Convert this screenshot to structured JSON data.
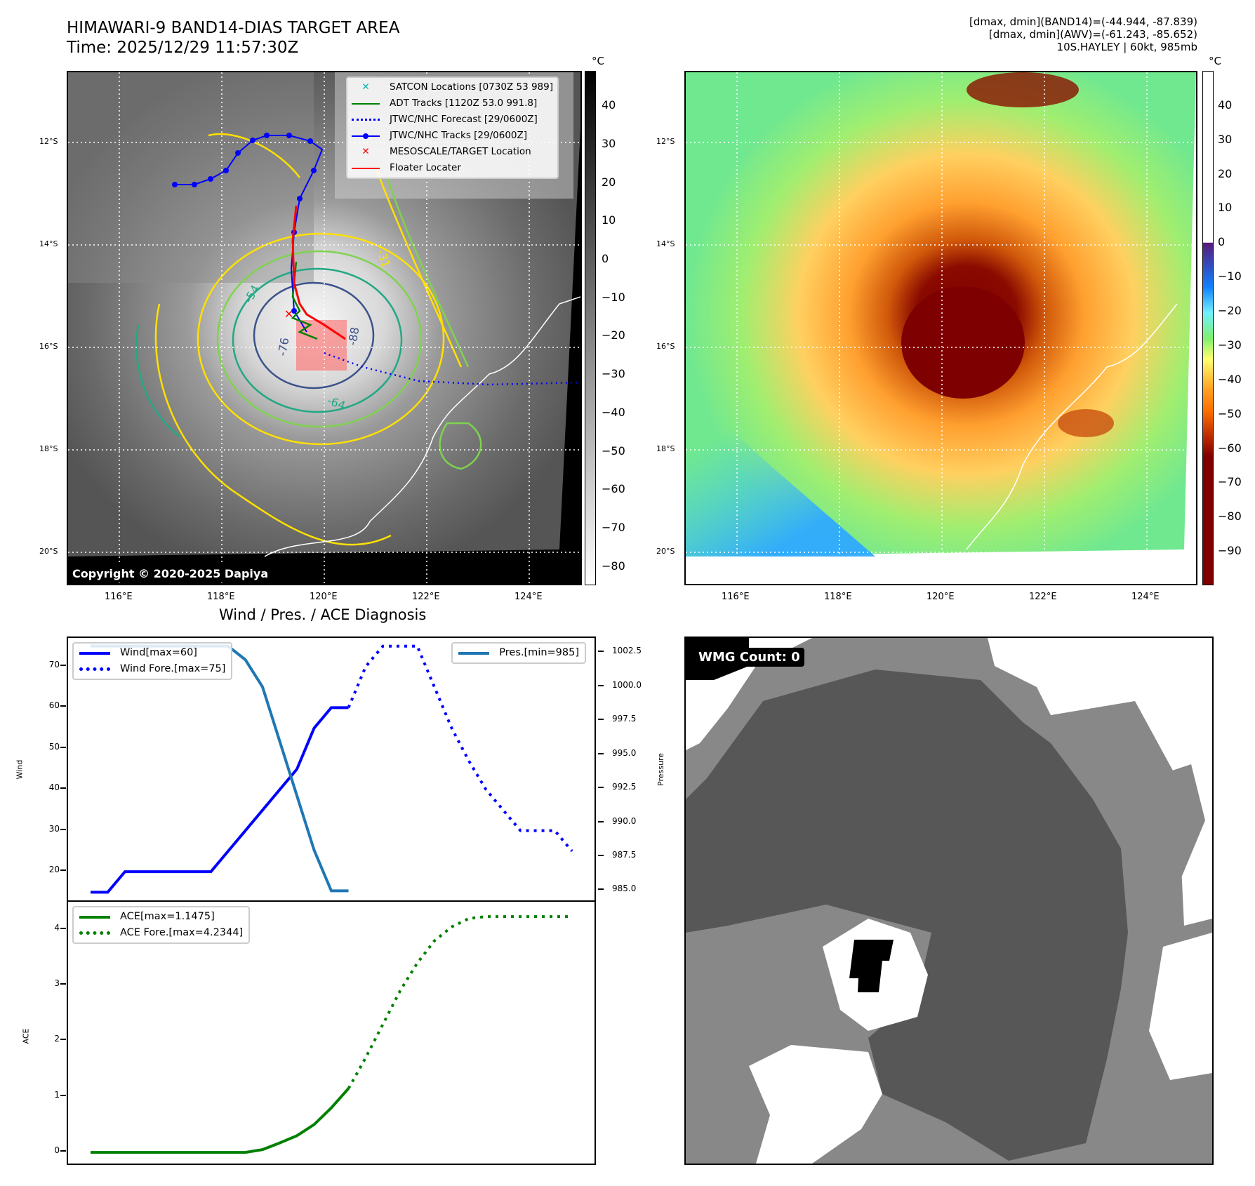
{
  "header": {
    "title_line1": "HIMAWARI-9 BAND14-DIAS TARGET AREA",
    "title_line2": "Time: 2025/12/29 11:57:30Z",
    "info_line1": "[dmax, dmin](BAND14)=(-44.944, -87.839)",
    "info_line2": "[dmax, dmin](AWV)=(-61.243, -85.652)",
    "info_line3": "10S.HAYLEY | 60kt, 985mb"
  },
  "colors": {
    "wind": "#0000ff",
    "pressure": "#1f77b4",
    "ace": "#008000",
    "floater": "#ff0000",
    "satcon": "#00b3b3",
    "contour_yellow": "#ffe000",
    "contour_green": "#7fd34e",
    "contour_teal": "#22a884",
    "contour_blue": "#3b528b"
  },
  "map_left": {
    "lat_ticks": [
      "12°S",
      "14°S",
      "16°S",
      "18°S",
      "20°S"
    ],
    "lon_ticks": [
      "116°E",
      "118°E",
      "120°E",
      "122°E",
      "124°E"
    ],
    "copyright": "Copyright © 2020-2025 Dapiya",
    "contour_labels": [
      "-31",
      "-54",
      "-76",
      "-64",
      "-88"
    ],
    "legend": [
      {
        "label": "SATCON Locations [0730Z 53 989]",
        "icon": "cyan-x-icon"
      },
      {
        "label": "ADT Tracks [1120Z 53.0 991.8]",
        "icon": "green-line-icon"
      },
      {
        "label": "JTWC/NHC Forecast [29/0600Z]",
        "icon": "blue-dotted-line-icon"
      },
      {
        "label": "JTWC/NHC Tracks [29/0600Z]",
        "icon": "blue-line-dot-icon"
      },
      {
        "label": "MESOSCALE/TARGET Location",
        "icon": "red-x-icon"
      },
      {
        "label": "Floater Locater",
        "icon": "red-line-icon"
      }
    ],
    "colorbar": {
      "unit": "°C",
      "ticks": [
        "40",
        "30",
        "20",
        "10",
        "0",
        "−10",
        "−20",
        "−30",
        "−40",
        "−50",
        "−60",
        "−70",
        "−80"
      ]
    }
  },
  "map_right": {
    "lat_ticks": [
      "12°S",
      "14°S",
      "16°S",
      "18°S",
      "20°S"
    ],
    "lon_ticks": [
      "116°E",
      "118°E",
      "120°E",
      "122°E",
      "124°E"
    ],
    "colorbar": {
      "unit": "°C",
      "ticks": [
        "40",
        "30",
        "20",
        "10",
        "0",
        "−10",
        "−20",
        "−30",
        "−40",
        "−50",
        "−60",
        "−70",
        "−80",
        "−90"
      ]
    }
  },
  "wmg": {
    "label": "WMG Count: 0"
  },
  "chart_data": [
    {
      "type": "line",
      "title": "Wind / Pres. / ACE Diagnosis",
      "ylabel": "Wind",
      "ylabel_right": "Pressure",
      "ylim": [
        13,
        77
      ],
      "ylim_right": [
        984.3,
        1003.6
      ],
      "yticks": [
        "20",
        "30",
        "40",
        "50",
        "60",
        "70"
      ],
      "yticks_right": [
        "985.0",
        "987.5",
        "990.0",
        "992.5",
        "995.0",
        "997.5",
        "1000.0",
        "1002.5"
      ],
      "x": [
        0,
        1,
        2,
        3,
        4,
        5,
        6,
        7,
        8,
        9,
        10,
        11,
        12,
        13,
        14,
        15,
        16,
        17,
        18,
        19,
        20,
        21,
        22,
        23,
        24,
        25,
        26,
        27,
        28
      ],
      "series": [
        {
          "name": "Wind[max=60]",
          "style": "solid",
          "axis": "left",
          "x": [
            0,
            1,
            2,
            3,
            4,
            5,
            6,
            7,
            8,
            9,
            10,
            11,
            12,
            13,
            14,
            15
          ],
          "values": [
            15,
            15,
            20,
            20,
            20,
            20,
            20,
            20,
            25,
            30,
            35,
            40,
            45,
            55,
            60,
            60
          ]
        },
        {
          "name": "Wind Fore.[max=75]",
          "style": "dotted",
          "axis": "left",
          "x": [
            15,
            16,
            17,
            18,
            19,
            20,
            21,
            22,
            23,
            24,
            25,
            26,
            27,
            28
          ],
          "values": [
            60,
            70,
            75,
            75,
            75,
            65,
            55,
            47,
            40,
            35,
            30,
            30,
            30,
            25
          ]
        },
        {
          "name": "Pres.[min=985]",
          "style": "solid",
          "axis": "right",
          "x": [
            0,
            1,
            2,
            3,
            4,
            5,
            6,
            7,
            8,
            9,
            10,
            11,
            12,
            13,
            14,
            15
          ],
          "values": [
            1003,
            1003,
            1003,
            1003,
            1003,
            1003,
            1003,
            1003,
            1003,
            1002,
            1000,
            996,
            992,
            988,
            985,
            985
          ]
        }
      ],
      "legend_left": [
        "Wind[max=60]",
        "Wind Fore.[max=75]"
      ],
      "legend_right": [
        "Pres.[min=985]"
      ]
    },
    {
      "type": "line",
      "ylabel": "ACE",
      "ylim": [
        -0.2,
        4.5
      ],
      "yticks": [
        "0",
        "1",
        "2",
        "3",
        "4"
      ],
      "series": [
        {
          "name": "ACE[max=1.1475]",
          "style": "solid",
          "x": [
            0,
            1,
            2,
            3,
            4,
            5,
            6,
            7,
            8,
            9,
            10,
            11,
            12,
            13,
            14,
            15
          ],
          "values": [
            0,
            0,
            0,
            0,
            0,
            0,
            0,
            0,
            0,
            0,
            0.05,
            0.17,
            0.3,
            0.5,
            0.8,
            1.1475
          ]
        },
        {
          "name": "ACE Fore.[max=4.2344]",
          "style": "dotted",
          "x": [
            15,
            16,
            17,
            18,
            19,
            20,
            21,
            22,
            23,
            24,
            25,
            26,
            27,
            28
          ],
          "values": [
            1.1475,
            1.7,
            2.3,
            2.9,
            3.4,
            3.8,
            4.05,
            4.2,
            4.2344,
            4.2344,
            4.2344,
            4.2344,
            4.2344,
            4.2344
          ]
        }
      ],
      "legend": [
        "ACE[max=1.1475]",
        "ACE Fore.[max=4.2344]"
      ]
    }
  ]
}
